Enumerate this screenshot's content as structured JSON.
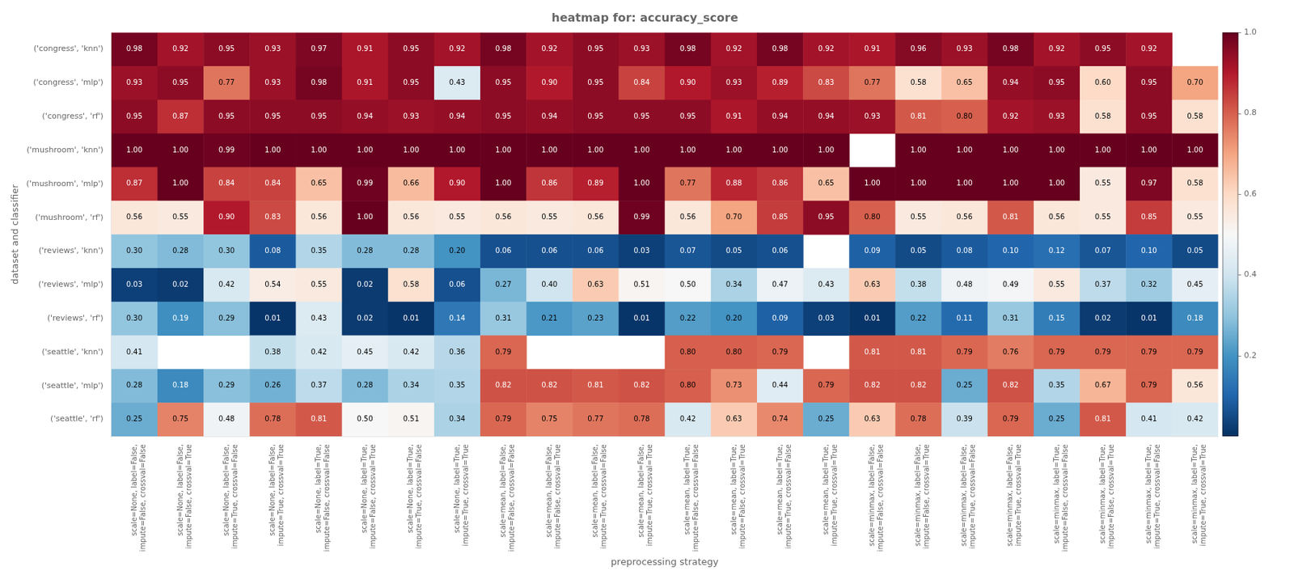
{
  "chart_data": {
    "type": "heatmap",
    "title": "heatmap for: accuracy_score",
    "xlabel": "preprocessing strategy",
    "ylabel": "dataset and classifier",
    "rows": [
      "('congress', 'knn')",
      "('congress', 'mlp')",
      "('congress', 'rf')",
      "('mushroom', 'knn')",
      "('mushroom', 'mlp')",
      "('mushroom', 'rf')",
      "('reviews', 'knn')",
      "('reviews', 'mlp')",
      "('reviews', 'rf')",
      "('seattle', 'knn')",
      "('seattle', 'mlp')",
      "('seattle', 'rf')"
    ],
    "columns": [
      "scale=None, label=False,\nimpute=False, crossval=False",
      "scale=None, label=False,\nimpute=False, crossval=True",
      "scale=None, label=False,\nimpute=True, crossval=False",
      "scale=None, label=False,\nimpute=True, crossval=True",
      "scale=None, label=True,\nimpute=False, crossval=False",
      "scale=None, label=True,\nimpute=False, crossval=True",
      "scale=None, label=True,\nimpute=True, crossval=False",
      "scale=None, label=True,\nimpute=True, crossval=True",
      "scale=mean, label=False,\nimpute=False, crossval=False",
      "scale=mean, label=False,\nimpute=False, crossval=True",
      "scale=mean, label=False,\nimpute=True, crossval=False",
      "scale=mean, label=False,\nimpute=True, crossval=True",
      "scale=mean, label=True,\nimpute=False, crossval=False",
      "scale=mean, label=True,\nimpute=False, crossval=True",
      "scale=mean, label=True,\nimpute=True, crossval=False",
      "scale=mean, label=True,\nimpute=True, crossval=True",
      "scale=minmax, label=False,\nimpute=False, crossval=False",
      "scale=minmax, label=False,\nimpute=False, crossval=True",
      "scale=minmax, label=False,\nimpute=True, crossval=False",
      "scale=minmax, label=False,\nimpute=True, crossval=True",
      "scale=minmax, label=True,\nimpute=False, crossval=False",
      "scale=minmax, label=True,\nimpute=False, crossval=True",
      "scale=minmax, label=True,\nimpute=True, crossval=False",
      "scale=minmax, label=True,\nimpute=True, crossval=True"
    ],
    "values": [
      [
        0.98,
        0.92,
        0.95,
        0.93,
        0.97,
        0.91,
        0.95,
        0.92,
        0.98,
        0.92,
        0.95,
        0.93,
        0.98,
        0.92,
        0.98,
        0.92,
        0.91,
        0.96,
        0.93,
        0.98,
        0.92,
        0.95,
        0.92,
        null
      ],
      [
        0.93,
        0.95,
        0.77,
        0.93,
        0.98,
        0.91,
        0.95,
        0.43,
        0.95,
        0.9,
        0.95,
        0.84,
        0.9,
        0.93,
        0.89,
        0.83,
        0.77,
        0.58,
        0.65,
        0.94,
        0.95,
        0.6,
        0.95,
        0.7
      ],
      [
        0.95,
        0.87,
        0.95,
        0.95,
        0.95,
        0.94,
        0.93,
        0.94,
        0.95,
        0.94,
        0.95,
        0.95,
        0.95,
        0.91,
        0.94,
        0.94,
        0.93,
        0.81,
        0.8,
        0.92,
        0.93,
        0.58,
        0.95,
        0.58
      ],
      [
        1.0,
        1.0,
        0.99,
        1.0,
        1.0,
        1.0,
        1.0,
        1.0,
        1.0,
        1.0,
        1.0,
        1.0,
        1.0,
        1.0,
        1.0,
        1.0,
        null,
        1.0,
        1.0,
        1.0,
        1.0,
        1.0,
        1.0,
        1.0
      ],
      [
        0.87,
        1.0,
        0.84,
        0.84,
        0.65,
        0.99,
        0.66,
        0.9,
        1.0,
        0.86,
        0.89,
        1.0,
        0.77,
        0.88,
        0.86,
        0.65,
        1.0,
        1.0,
        1.0,
        1.0,
        1.0,
        0.55,
        0.97,
        0.58
      ],
      [
        0.56,
        0.55,
        0.9,
        0.83,
        0.56,
        1.0,
        0.56,
        0.55,
        0.56,
        0.55,
        0.56,
        0.99,
        0.56,
        0.7,
        0.85,
        0.95,
        0.8,
        0.55,
        0.56,
        0.81,
        0.56,
        0.55,
        0.85,
        0.55
      ],
      [
        0.3,
        0.28,
        0.3,
        0.08,
        0.35,
        0.28,
        0.28,
        0.2,
        0.06,
        0.06,
        0.06,
        0.03,
        0.07,
        0.05,
        0.06,
        null,
        0.09,
        0.05,
        0.08,
        0.1,
        0.12,
        0.07,
        0.1,
        0.05
      ],
      [
        0.03,
        0.02,
        0.42,
        0.54,
        0.55,
        0.02,
        0.58,
        0.06,
        0.27,
        0.4,
        0.63,
        0.51,
        0.5,
        0.34,
        0.47,
        0.43,
        0.63,
        0.38,
        0.48,
        0.49,
        0.55,
        0.37,
        0.32,
        0.45
      ],
      [
        0.3,
        0.19,
        0.29,
        0.01,
        0.43,
        0.02,
        0.01,
        0.14,
        0.31,
        0.21,
        0.23,
        0.01,
        0.22,
        0.2,
        0.09,
        0.03,
        0.01,
        0.22,
        0.11,
        0.31,
        0.15,
        0.02,
        0.01,
        0.18
      ],
      [
        0.41,
        null,
        null,
        0.38,
        0.42,
        0.45,
        0.42,
        0.36,
        0.79,
        null,
        null,
        null,
        0.8,
        0.8,
        0.79,
        null,
        0.81,
        0.81,
        0.79,
        0.76,
        0.79,
        0.79,
        0.79,
        0.79
      ],
      [
        0.28,
        0.18,
        0.29,
        0.26,
        0.37,
        0.28,
        0.34,
        0.35,
        0.82,
        0.82,
        0.81,
        0.82,
        0.8,
        0.73,
        0.44,
        0.79,
        0.82,
        0.82,
        0.25,
        0.82,
        0.35,
        0.67,
        0.79,
        0.56
      ],
      [
        0.25,
        0.75,
        0.48,
        0.78,
        0.81,
        0.5,
        0.51,
        0.34,
        0.79,
        0.75,
        0.77,
        0.78,
        0.42,
        0.63,
        0.74,
        0.25,
        0.63,
        0.78,
        0.39,
        0.79,
        0.25,
        0.81,
        0.41,
        0.42
      ]
    ],
    "value_labels": [
      [
        "0.98",
        "0.92",
        "0.95",
        "0.93",
        "0.97",
        "0.91",
        "0.95",
        "0.92",
        "0.98",
        "0.92",
        "0.95",
        "0.93",
        "0.98",
        "0.92",
        "0.98",
        "0.92",
        "0.91",
        "0.96",
        "0.93",
        "0.98",
        "0.92",
        "0.95",
        "0.92",
        null
      ],
      [
        "0.93",
        "0.95",
        "0.77",
        "0.93",
        "0.98",
        "0.91",
        "0.95",
        "0.43",
        "0.95",
        "0.90",
        "0.95",
        "0.84",
        "0.90",
        "0.93",
        "0.89",
        "0.83",
        "0.77",
        "0.58",
        "0.65",
        "0.94",
        "0.95",
        "0.60",
        "0.95",
        "0.70"
      ],
      [
        "0.95",
        "0.87",
        "0.95",
        "0.95",
        "0.95",
        "0.94",
        "0.93",
        "0.94",
        "0.95",
        "0.94",
        "0.95",
        "0.95",
        "0.95",
        "0.91",
        "0.94",
        "0.94",
        "0.93",
        "0.81",
        "0.80",
        "0.92",
        "0.93",
        "0.58",
        "0.95",
        "0.58"
      ],
      [
        "1.00",
        "1.00",
        "0.99",
        "1.00",
        "1.00",
        "1.00",
        "1.00",
        "1.00",
        "1.00",
        "1.00",
        "1.00",
        "1.00",
        "1.00",
        "1.00",
        "1.00",
        "1.00",
        null,
        "1.00",
        "1.00",
        "1.00",
        "1.00",
        "1.00",
        "1.00",
        "1.00"
      ],
      [
        "0.87",
        "1.00",
        "0.84",
        "0.84",
        "0.65",
        "0.99",
        "0.66",
        "0.90",
        "1.00",
        "0.86",
        "0.89",
        "1.00",
        "0.77",
        "0.88",
        "0.86",
        "0.65",
        "1.00",
        "1.00",
        "1.00",
        "1.00",
        "1.00",
        "0.55",
        "0.97",
        "0.58"
      ],
      [
        "0.56",
        "0.55",
        "0.90",
        "0.83",
        "0.56",
        "1.00",
        "0.56",
        "0.55",
        "0.56",
        "0.55",
        "0.56",
        "0.99",
        "0.56",
        "0.70",
        "0.85",
        "0.95",
        "0.80",
        "0.55",
        "0.56",
        "0.81",
        "0.56",
        "0.55",
        "0.85",
        "0.55"
      ],
      [
        "0.30",
        "0.28",
        "0.30",
        "0.08",
        "0.35",
        "0.28",
        "0.28",
        "0.20",
        "0.06",
        "0.06",
        "0.06",
        "0.03",
        "0.07",
        "0.05",
        "0.06",
        null,
        "0.09",
        "0.05",
        "0.08",
        "0.10",
        "0.12",
        "0.07",
        "0.10",
        "0.05"
      ],
      [
        "0.03",
        "0.02",
        "0.42",
        "0.54",
        "0.55",
        "0.02",
        "0.58",
        "0.06",
        "0.27",
        "0.40",
        "0.63",
        "0.51",
        "0.50",
        "0.34",
        "0.47",
        "0.43",
        "0.63",
        "0.38",
        "0.48",
        "0.49",
        "0.55",
        "0.37",
        "0.32",
        "0.45"
      ],
      [
        "0.30",
        "0.19",
        "0.29",
        "0.01",
        "0.43",
        "0.02",
        "0.01",
        "0.14",
        "0.31",
        "0.21",
        "0.23",
        "0.01",
        "0.22",
        "0.20",
        "0.09",
        "0.03",
        "0.01",
        "0.22",
        "0.11",
        "0.31",
        "0.15",
        "0.02",
        "0.01",
        "0.18"
      ],
      [
        "0.41",
        null,
        null,
        "0.38",
        "0.42",
        "0.45",
        "0.42",
        "0.36",
        "0.79",
        null,
        null,
        null,
        "0.80",
        "0.80",
        "0.79",
        null,
        "0.81",
        "0.81",
        "0.79",
        "0.76",
        "0.79",
        "0.79",
        "0.79",
        "0.79"
      ],
      [
        "0.28",
        "0.18",
        "0.29",
        "0.26",
        "0.37",
        "0.28",
        "0.34",
        "0.35",
        "0.82",
        "0.82",
        "0.81",
        "0.82",
        "0.80",
        "0.73",
        "0.44",
        "0.79",
        "0.82",
        "0.82",
        "0.25",
        "0.82",
        "0.35",
        "0.67",
        "0.79",
        "0.56"
      ],
      [
        "0.25",
        "0.75",
        "0.48",
        "0.78",
        "0.81",
        "0.50",
        "0.51",
        "0.34",
        "0.79",
        "0.75",
        "0.77",
        "0.78",
        "0.42",
        "0.63",
        "0.74",
        "0.25",
        "0.63",
        "0.78",
        "0.39",
        "0.79",
        "0.25",
        "0.81",
        "0.41",
        "0.42"
      ]
    ],
    "data_labels": true,
    "grid": false,
    "color": "RdBu_r",
    "colorbar_range": [
      0.0,
      1.0
    ],
    "colorbar_ticks": [
      0.2,
      0.4,
      0.6,
      0.8,
      {
        "value": 1.0,
        "label": "1.0"
      }
    ]
  }
}
